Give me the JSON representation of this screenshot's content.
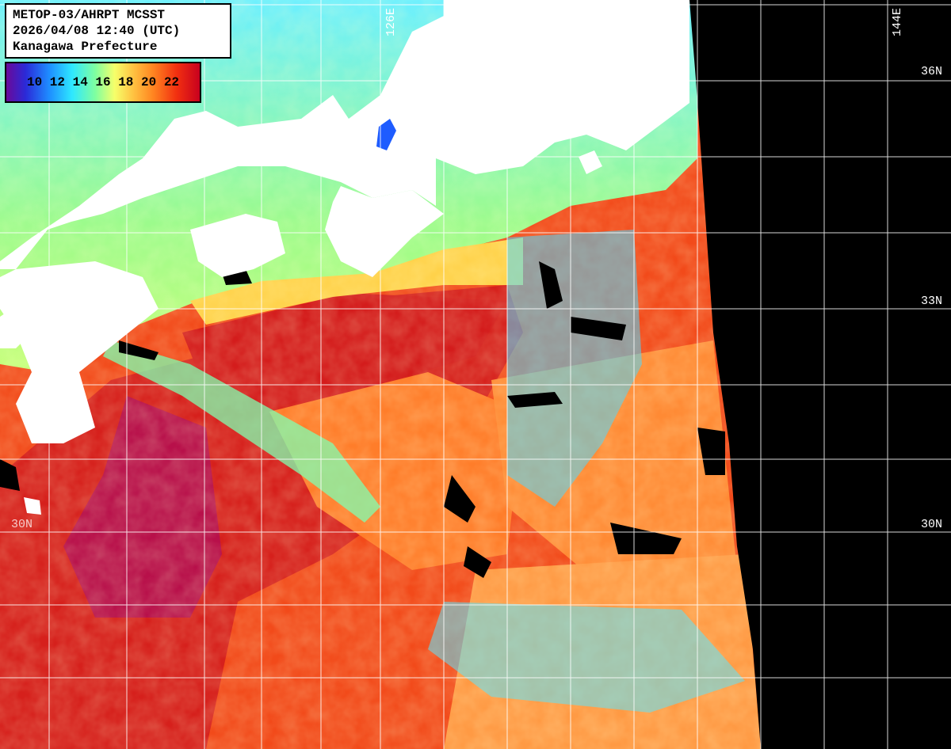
{
  "header": {
    "line1": "METOP-03/AHRPT MCSST",
    "line2": "2026/04/08 12:40 (UTC)",
    "line3": "Kanagawa Prefecture"
  },
  "legend": {
    "scale_text": "10 12 14 16 18 20 22",
    "colors": [
      "#6a0a9a",
      "#2a2ad8",
      "#1e8cff",
      "#2ee8ff",
      "#7fffa0",
      "#f6ff6a",
      "#ffc040",
      "#ff8420",
      "#f23010",
      "#c8001e"
    ]
  },
  "graticule": {
    "lon_labels": [
      "126E",
      "144E"
    ],
    "lat_labels": [
      "36N",
      "33N",
      "30N",
      "30N"
    ]
  },
  "colors": {
    "land": "#ffffff",
    "no_data": "#000000",
    "grid": "#ffffff",
    "cloud": "#000000"
  }
}
